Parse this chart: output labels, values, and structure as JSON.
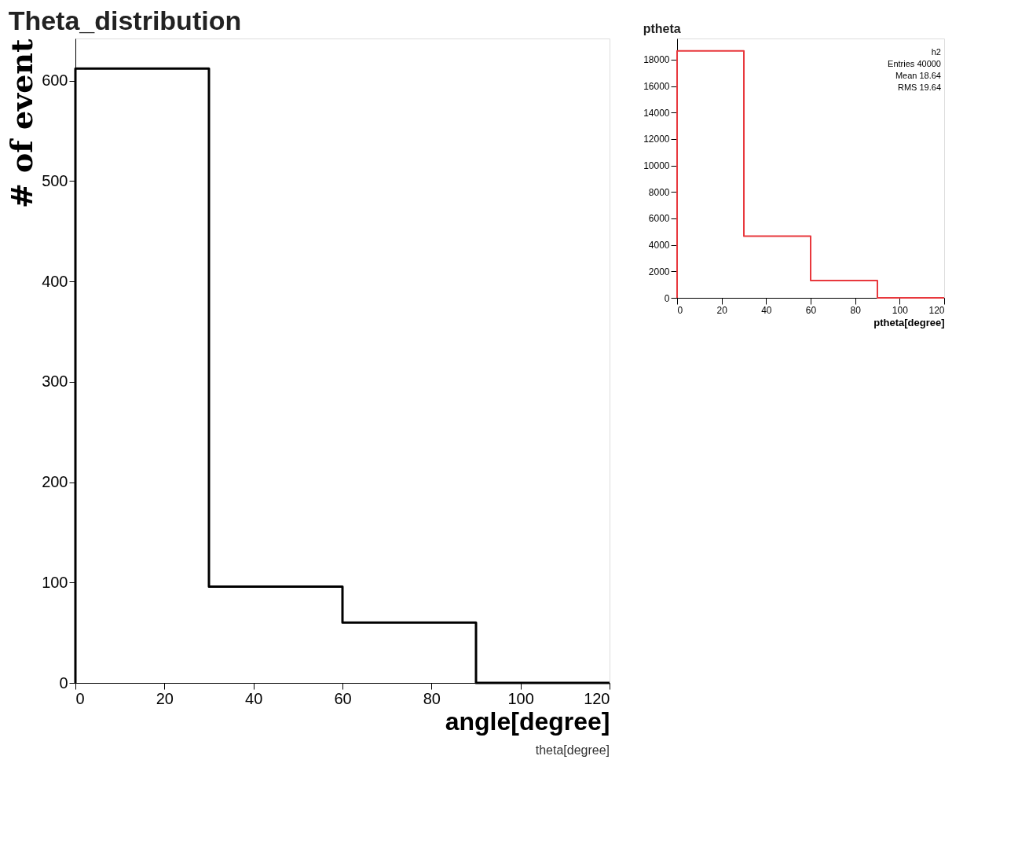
{
  "chart_data": [
    {
      "type": "histogram",
      "title": "Theta_distribution",
      "xlabel": "angle[degree]",
      "ylabel": "# of event",
      "bins": [
        0,
        30,
        60,
        90,
        120
      ],
      "values": [
        612,
        96,
        60,
        0
      ],
      "color": "#000000",
      "xlim": [
        0,
        120
      ],
      "xticks": [
        0,
        20,
        40,
        60,
        80,
        100,
        120
      ],
      "ylim": [
        0,
        642
      ],
      "yticks": [
        0,
        100,
        200,
        300,
        400,
        500,
        600
      ],
      "grid": false,
      "annotations": [
        "theta[degree]"
      ]
    },
    {
      "type": "histogram",
      "title": "ptheta",
      "xlabel": "ptheta[degree]",
      "bins": [
        0,
        30,
        60,
        90,
        120
      ],
      "values": [
        18670,
        4660,
        1300,
        0
      ],
      "color": "#e8383d",
      "xlim": [
        0,
        120
      ],
      "xticks": [
        0,
        20,
        40,
        60,
        80,
        100,
        120
      ],
      "ylim": [
        0,
        19600
      ],
      "yticks": [
        0,
        2000,
        4000,
        6000,
        8000,
        10000,
        12000,
        14000,
        16000,
        18000
      ],
      "grid": false,
      "annotations": [
        "h2",
        "Entries 40000",
        "Mean 18.64",
        "RMS 19.64"
      ]
    }
  ]
}
